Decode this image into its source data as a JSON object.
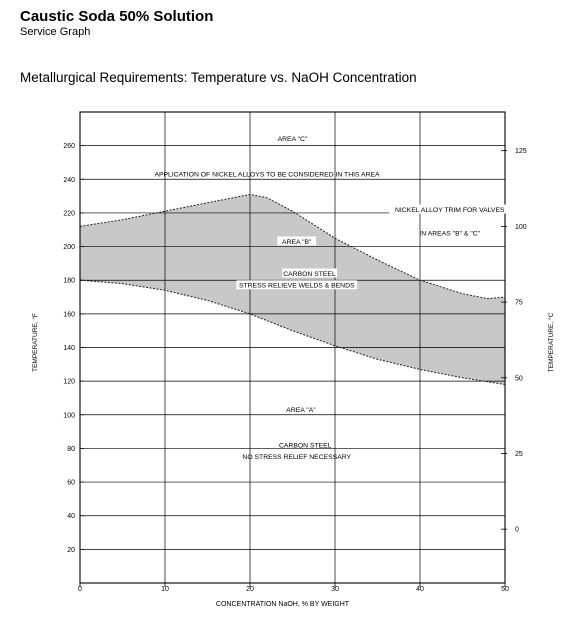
{
  "header": {
    "title": "Caustic Soda 50% Solution",
    "subtitle": "Service Graph"
  },
  "chart_data": {
    "type": "area",
    "title": "Metallurgical Requirements:  Temperature vs. NaOH Concentration",
    "xlabel": "CONCENTRATION NaOH, % BY WEIGHT",
    "ylabel": "TEMPERATURE, °F",
    "y2label": "TEMPERATURE, °C",
    "xlim": [
      0,
      50
    ],
    "ylim": [
      0,
      280
    ],
    "x_ticks": [
      0,
      10,
      20,
      30,
      40,
      50
    ],
    "y_ticks": [
      20,
      40,
      60,
      80,
      100,
      120,
      140,
      160,
      180,
      200,
      220,
      240,
      260
    ],
    "y2_ticks": [
      0,
      25,
      50,
      75,
      100,
      125
    ],
    "grid": true,
    "upper_curve": {
      "x": [
        0,
        5,
        10,
        15,
        20,
        22,
        25,
        30,
        35,
        40,
        45,
        48,
        50
      ],
      "y": [
        212,
        216,
        221,
        226,
        231,
        229,
        221,
        205,
        192,
        180,
        172,
        169,
        170
      ]
    },
    "lower_curve": {
      "x": [
        0,
        5,
        10,
        15,
        20,
        25,
        30,
        35,
        40,
        45,
        50
      ],
      "y": [
        180,
        178,
        174,
        168,
        160,
        150,
        141,
        133,
        127,
        122,
        118
      ]
    },
    "fill_color": "#c8c8c8",
    "annotations": [
      {
        "text": "AREA \"C\"",
        "x": 25,
        "y": 264
      },
      {
        "text": "APPLICATION OF NICKEL ALLOYS TO BE CONSIDERED IN THIS AREA",
        "x": 22,
        "y": 243
      },
      {
        "text": "NICKEL ALLOY TRIM FOR VALVES",
        "x": 43.5,
        "y": 222,
        "boxed": true
      },
      {
        "text": "IN AREAS \"B\" & \"C\"",
        "x": 43.5,
        "y": 208
      },
      {
        "text": "AREA \"B\"",
        "x": 25.5,
        "y": 203,
        "boxed": true
      },
      {
        "text": "CARBON STEEL",
        "x": 27,
        "y": 184,
        "boxed": true
      },
      {
        "text": "STRESS RELIEVE WELDS & BENDS",
        "x": 25.5,
        "y": 177,
        "boxed": true
      },
      {
        "text": "AREA \"A\"",
        "x": 26,
        "y": 103
      },
      {
        "text": "CARBON STEEL",
        "x": 26.5,
        "y": 82
      },
      {
        "text": "NO STRESS RELIEF NECESSARY",
        "x": 25.5,
        "y": 75
      }
    ]
  }
}
